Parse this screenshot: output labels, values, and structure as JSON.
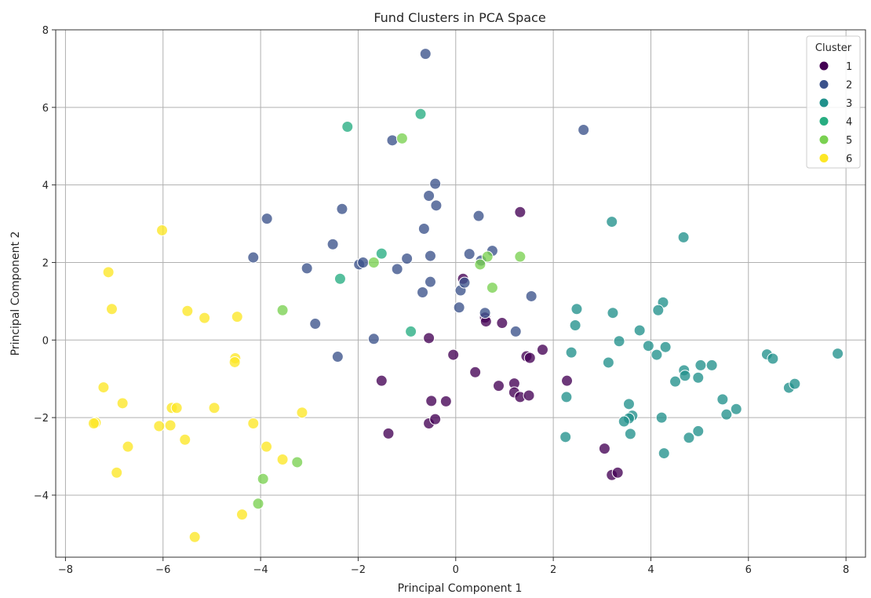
{
  "chart_data": {
    "type": "scatter",
    "title": "Fund Clusters in PCA Space",
    "xlabel": "Principal Component 1",
    "ylabel": "Principal Component 2",
    "xlim": [
      -8.2,
      8.4
    ],
    "ylim": [
      -5.6,
      8.0
    ],
    "xticks": [
      -8,
      -6,
      -4,
      -2,
      0,
      2,
      4,
      6,
      8
    ],
    "xtick_labels": [
      "−8",
      "−6",
      "−4",
      "−2",
      "0",
      "2",
      "4",
      "6",
      "8"
    ],
    "yticks": [
      -4,
      -2,
      0,
      2,
      4,
      6,
      8
    ],
    "ytick_labels": [
      "−4",
      "−2",
      "0",
      "2",
      "4",
      "6",
      "8"
    ],
    "grid": true,
    "legend": {
      "title": "Cluster",
      "placement": "top-right"
    },
    "series": [
      {
        "name": "1",
        "color": "#440154",
        "points": [
          [
            1.32,
            3.3
          ],
          [
            0.15,
            1.58
          ],
          [
            0.6,
            0.58
          ],
          [
            0.62,
            0.48
          ],
          [
            0.95,
            0.44
          ],
          [
            -0.55,
            0.05
          ],
          [
            -0.05,
            -0.38
          ],
          [
            1.45,
            -0.42
          ],
          [
            1.52,
            -0.46
          ],
          [
            1.78,
            -0.25
          ],
          [
            0.4,
            -0.83
          ],
          [
            0.88,
            -1.18
          ],
          [
            1.2,
            -1.12
          ],
          [
            1.2,
            -1.35
          ],
          [
            1.32,
            -1.47
          ],
          [
            1.5,
            -1.43
          ],
          [
            2.28,
            -1.05
          ],
          [
            -1.52,
            -1.05
          ],
          [
            -0.5,
            -1.57
          ],
          [
            -0.2,
            -1.58
          ],
          [
            -0.55,
            -2.15
          ],
          [
            -0.42,
            -2.04
          ],
          [
            -1.38,
            -2.41
          ],
          [
            3.05,
            -2.8
          ],
          [
            3.2,
            -3.48
          ],
          [
            3.32,
            -3.42
          ]
        ]
      },
      {
        "name": "2",
        "color": "#3b528b",
        "points": [
          [
            -0.62,
            7.38
          ],
          [
            2.62,
            5.42
          ],
          [
            -1.3,
            5.15
          ],
          [
            -0.42,
            4.03
          ],
          [
            -0.55,
            3.72
          ],
          [
            -0.4,
            3.47
          ],
          [
            -2.33,
            3.38
          ],
          [
            -3.87,
            3.13
          ],
          [
            0.47,
            3.2
          ],
          [
            -0.65,
            2.87
          ],
          [
            -2.52,
            2.47
          ],
          [
            -4.15,
            2.13
          ],
          [
            -1.0,
            2.1
          ],
          [
            -0.52,
            2.17
          ],
          [
            0.28,
            2.22
          ],
          [
            0.52,
            2.05
          ],
          [
            0.75,
            2.3
          ],
          [
            -1.98,
            1.95
          ],
          [
            -1.9,
            2.0
          ],
          [
            -1.2,
            1.83
          ],
          [
            -3.05,
            1.85
          ],
          [
            -0.52,
            1.5
          ],
          [
            -0.68,
            1.23
          ],
          [
            0.1,
            1.28
          ],
          [
            0.18,
            1.48
          ],
          [
            1.55,
            1.13
          ],
          [
            0.07,
            0.84
          ],
          [
            0.6,
            0.7
          ],
          [
            -2.88,
            0.42
          ],
          [
            1.23,
            0.22
          ],
          [
            -1.68,
            0.03
          ],
          [
            -2.42,
            -0.43
          ]
        ]
      },
      {
        "name": "3",
        "color": "#21918c",
        "points": [
          [
            3.2,
            3.05
          ],
          [
            4.67,
            2.65
          ],
          [
            4.25,
            0.97
          ],
          [
            4.15,
            0.77
          ],
          [
            2.48,
            0.8
          ],
          [
            3.22,
            0.7
          ],
          [
            2.45,
            0.38
          ],
          [
            3.77,
            0.25
          ],
          [
            3.35,
            -0.03
          ],
          [
            3.95,
            -0.15
          ],
          [
            4.3,
            -0.18
          ],
          [
            4.12,
            -0.38
          ],
          [
            2.37,
            -0.32
          ],
          [
            4.68,
            -0.78
          ],
          [
            4.7,
            -0.92
          ],
          [
            4.5,
            -1.07
          ],
          [
            4.97,
            -0.97
          ],
          [
            5.02,
            -0.65
          ],
          [
            5.25,
            -0.65
          ],
          [
            3.13,
            -0.58
          ],
          [
            6.38,
            -0.37
          ],
          [
            6.5,
            -0.48
          ],
          [
            7.83,
            -0.35
          ],
          [
            6.83,
            -1.23
          ],
          [
            6.95,
            -1.13
          ],
          [
            2.27,
            -1.47
          ],
          [
            3.55,
            -1.65
          ],
          [
            5.47,
            -1.53
          ],
          [
            5.55,
            -1.92
          ],
          [
            5.75,
            -1.78
          ],
          [
            3.62,
            -1.95
          ],
          [
            3.55,
            -2.02
          ],
          [
            3.45,
            -2.1
          ],
          [
            4.22,
            -2.0
          ],
          [
            3.58,
            -2.42
          ],
          [
            2.25,
            -2.5
          ],
          [
            4.78,
            -2.52
          ],
          [
            4.97,
            -2.35
          ],
          [
            4.27,
            -2.92
          ]
        ]
      },
      {
        "name": "4",
        "color": "#27ad81",
        "points": [
          [
            -2.22,
            5.5
          ],
          [
            -0.72,
            5.83
          ],
          [
            -1.52,
            2.23
          ],
          [
            -2.37,
            1.58
          ],
          [
            -0.92,
            0.22
          ]
        ]
      },
      {
        "name": "5",
        "color": "#7ad151",
        "points": [
          [
            -1.1,
            5.2
          ],
          [
            1.32,
            2.15
          ],
          [
            0.65,
            2.15
          ],
          [
            0.5,
            1.95
          ],
          [
            -1.68,
            2.0
          ],
          [
            0.75,
            1.35
          ],
          [
            -3.55,
            0.77
          ],
          [
            -3.25,
            -3.15
          ],
          [
            -3.95,
            -3.58
          ],
          [
            -4.05,
            -4.22
          ]
        ]
      },
      {
        "name": "6",
        "color": "#fde725",
        "points": [
          [
            -6.02,
            2.83
          ],
          [
            -7.12,
            1.75
          ],
          [
            -7.05,
            0.8
          ],
          [
            -5.5,
            0.75
          ],
          [
            -5.15,
            0.57
          ],
          [
            -4.48,
            0.6
          ],
          [
            -4.52,
            -0.47
          ],
          [
            -4.53,
            -0.57
          ],
          [
            -7.22,
            -1.22
          ],
          [
            -6.83,
            -1.63
          ],
          [
            -5.82,
            -1.75
          ],
          [
            -5.72,
            -1.75
          ],
          [
            -4.95,
            -1.75
          ],
          [
            -3.15,
            -1.87
          ],
          [
            -7.38,
            -2.13
          ],
          [
            -7.42,
            -2.15
          ],
          [
            -6.08,
            -2.22
          ],
          [
            -5.85,
            -2.2
          ],
          [
            -4.15,
            -2.15
          ],
          [
            -5.55,
            -2.57
          ],
          [
            -6.72,
            -2.75
          ],
          [
            -3.88,
            -2.75
          ],
          [
            -3.55,
            -3.08
          ],
          [
            -6.95,
            -3.42
          ],
          [
            -4.38,
            -4.5
          ],
          [
            -5.35,
            -5.08
          ]
        ]
      }
    ]
  }
}
